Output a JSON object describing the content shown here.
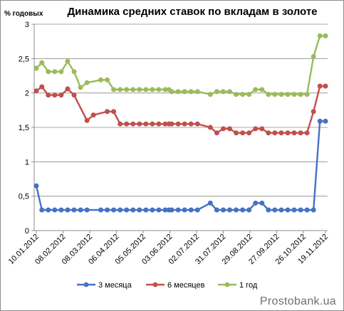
{
  "chart_data": {
    "type": "line",
    "title": "Динамика средних ставок по вкладам в золоте",
    "ylabel": "% годовых",
    "xlabel": "",
    "ylim": [
      0,
      3
    ],
    "yticks": [
      "0",
      "0,5",
      "1",
      "1,5",
      "2",
      "2,5",
      "3"
    ],
    "ytick_values": [
      0,
      0.5,
      1,
      1.5,
      2,
      2.5,
      3
    ],
    "x_range": [
      "2012-01-10",
      "2012-11-19"
    ],
    "xticks": [
      "10.01.2012",
      "08.02.2012",
      "08.03.2012",
      "06.04.2012",
      "05.05.2012",
      "03.06.2012",
      "02.07.2012",
      "31.07.2012",
      "29.08.2012",
      "27.09.2012",
      "26.10.2012",
      "19.11.2012"
    ],
    "xtick_dates": [
      "2012-01-10",
      "2012-02-08",
      "2012-03-08",
      "2012-04-06",
      "2012-05-05",
      "2012-06-03",
      "2012-07-02",
      "2012-07-31",
      "2012-08-29",
      "2012-09-27",
      "2012-10-26",
      "2012-11-19"
    ],
    "grid": "horizontal",
    "legend_position": "bottom",
    "series": [
      {
        "name": "3 месяца",
        "color": "#4472c4",
        "points": [
          [
            "2012-01-10",
            0.65
          ],
          [
            "2012-01-16",
            0.3
          ],
          [
            "2012-01-23",
            0.3
          ],
          [
            "2012-01-30",
            0.3
          ],
          [
            "2012-02-06",
            0.3
          ],
          [
            "2012-02-13",
            0.3
          ],
          [
            "2012-02-20",
            0.3
          ],
          [
            "2012-02-27",
            0.3
          ],
          [
            "2012-03-05",
            0.3
          ],
          [
            "2012-03-20",
            0.3
          ],
          [
            "2012-03-27",
            0.3
          ],
          [
            "2012-04-03",
            0.3
          ],
          [
            "2012-04-10",
            0.3
          ],
          [
            "2012-04-17",
            0.3
          ],
          [
            "2012-04-24",
            0.3
          ],
          [
            "2012-05-01",
            0.3
          ],
          [
            "2012-05-08",
            0.3
          ],
          [
            "2012-05-15",
            0.3
          ],
          [
            "2012-05-22",
            0.3
          ],
          [
            "2012-05-29",
            0.3
          ],
          [
            "2012-06-02",
            0.3
          ],
          [
            "2012-06-05",
            0.3
          ],
          [
            "2012-06-12",
            0.3
          ],
          [
            "2012-06-19",
            0.3
          ],
          [
            "2012-06-26",
            0.3
          ],
          [
            "2012-07-03",
            0.3
          ],
          [
            "2012-07-17",
            0.4
          ],
          [
            "2012-07-24",
            0.3
          ],
          [
            "2012-07-31",
            0.3
          ],
          [
            "2012-08-07",
            0.3
          ],
          [
            "2012-08-14",
            0.3
          ],
          [
            "2012-08-21",
            0.3
          ],
          [
            "2012-08-28",
            0.3
          ],
          [
            "2012-09-04",
            0.4
          ],
          [
            "2012-09-11",
            0.4
          ],
          [
            "2012-09-18",
            0.3
          ],
          [
            "2012-09-25",
            0.3
          ],
          [
            "2012-10-02",
            0.3
          ],
          [
            "2012-10-09",
            0.3
          ],
          [
            "2012-10-16",
            0.3
          ],
          [
            "2012-10-23",
            0.3
          ],
          [
            "2012-10-30",
            0.3
          ],
          [
            "2012-11-06",
            0.3
          ],
          [
            "2012-11-13",
            1.59
          ],
          [
            "2012-11-19",
            1.59
          ]
        ]
      },
      {
        "name": "6 месяцев",
        "color": "#c0504d",
        "points": [
          [
            "2012-01-10",
            2.03
          ],
          [
            "2012-01-16",
            2.09
          ],
          [
            "2012-01-23",
            1.97
          ],
          [
            "2012-01-30",
            1.97
          ],
          [
            "2012-02-06",
            1.97
          ],
          [
            "2012-02-13",
            2.06
          ],
          [
            "2012-02-20",
            1.97
          ],
          [
            "2012-03-05",
            1.6
          ],
          [
            "2012-03-12",
            1.68
          ],
          [
            "2012-03-27",
            1.73
          ],
          [
            "2012-04-03",
            1.73
          ],
          [
            "2012-04-10",
            1.55
          ],
          [
            "2012-04-17",
            1.55
          ],
          [
            "2012-04-24",
            1.55
          ],
          [
            "2012-05-01",
            1.55
          ],
          [
            "2012-05-08",
            1.55
          ],
          [
            "2012-05-15",
            1.55
          ],
          [
            "2012-05-22",
            1.55
          ],
          [
            "2012-05-29",
            1.55
          ],
          [
            "2012-06-02",
            1.55
          ],
          [
            "2012-06-05",
            1.55
          ],
          [
            "2012-06-12",
            1.55
          ],
          [
            "2012-06-19",
            1.55
          ],
          [
            "2012-06-26",
            1.55
          ],
          [
            "2012-07-03",
            1.55
          ],
          [
            "2012-07-17",
            1.5
          ],
          [
            "2012-07-24",
            1.42
          ],
          [
            "2012-07-31",
            1.48
          ],
          [
            "2012-08-07",
            1.48
          ],
          [
            "2012-08-14",
            1.42
          ],
          [
            "2012-08-21",
            1.42
          ],
          [
            "2012-08-28",
            1.42
          ],
          [
            "2012-09-04",
            1.48
          ],
          [
            "2012-09-11",
            1.48
          ],
          [
            "2012-09-18",
            1.42
          ],
          [
            "2012-09-25",
            1.42
          ],
          [
            "2012-10-02",
            1.42
          ],
          [
            "2012-10-09",
            1.42
          ],
          [
            "2012-10-16",
            1.42
          ],
          [
            "2012-10-23",
            1.42
          ],
          [
            "2012-10-30",
            1.42
          ],
          [
            "2012-11-06",
            1.73
          ],
          [
            "2012-11-13",
            2.1
          ],
          [
            "2012-11-19",
            2.1
          ]
        ]
      },
      {
        "name": "1 год",
        "color": "#9bbb59",
        "points": [
          [
            "2012-01-10",
            2.36
          ],
          [
            "2012-01-16",
            2.44
          ],
          [
            "2012-01-23",
            2.31
          ],
          [
            "2012-01-30",
            2.31
          ],
          [
            "2012-02-06",
            2.31
          ],
          [
            "2012-02-13",
            2.46
          ],
          [
            "2012-02-20",
            2.31
          ],
          [
            "2012-02-27",
            2.08
          ],
          [
            "2012-03-05",
            2.15
          ],
          [
            "2012-03-20",
            2.19
          ],
          [
            "2012-03-27",
            2.19
          ],
          [
            "2012-04-03",
            2.05
          ],
          [
            "2012-04-10",
            2.05
          ],
          [
            "2012-04-17",
            2.05
          ],
          [
            "2012-04-24",
            2.05
          ],
          [
            "2012-05-01",
            2.05
          ],
          [
            "2012-05-08",
            2.05
          ],
          [
            "2012-05-15",
            2.05
          ],
          [
            "2012-05-22",
            2.05
          ],
          [
            "2012-05-29",
            2.05
          ],
          [
            "2012-06-02",
            2.05
          ],
          [
            "2012-06-05",
            2.02
          ],
          [
            "2012-06-12",
            2.02
          ],
          [
            "2012-06-19",
            2.02
          ],
          [
            "2012-06-26",
            2.02
          ],
          [
            "2012-07-03",
            2.02
          ],
          [
            "2012-07-17",
            1.98
          ],
          [
            "2012-07-24",
            2.02
          ],
          [
            "2012-07-31",
            2.02
          ],
          [
            "2012-08-07",
            2.02
          ],
          [
            "2012-08-14",
            1.98
          ],
          [
            "2012-08-21",
            1.98
          ],
          [
            "2012-08-28",
            1.98
          ],
          [
            "2012-09-04",
            2.05
          ],
          [
            "2012-09-11",
            2.05
          ],
          [
            "2012-09-18",
            1.98
          ],
          [
            "2012-09-25",
            1.98
          ],
          [
            "2012-10-02",
            1.98
          ],
          [
            "2012-10-09",
            1.98
          ],
          [
            "2012-10-16",
            1.98
          ],
          [
            "2012-10-23",
            1.98
          ],
          [
            "2012-10-30",
            1.98
          ],
          [
            "2012-11-06",
            2.53
          ],
          [
            "2012-11-13",
            2.83
          ],
          [
            "2012-11-19",
            2.83
          ]
        ]
      }
    ]
  },
  "watermark": "Prostobank.ua"
}
